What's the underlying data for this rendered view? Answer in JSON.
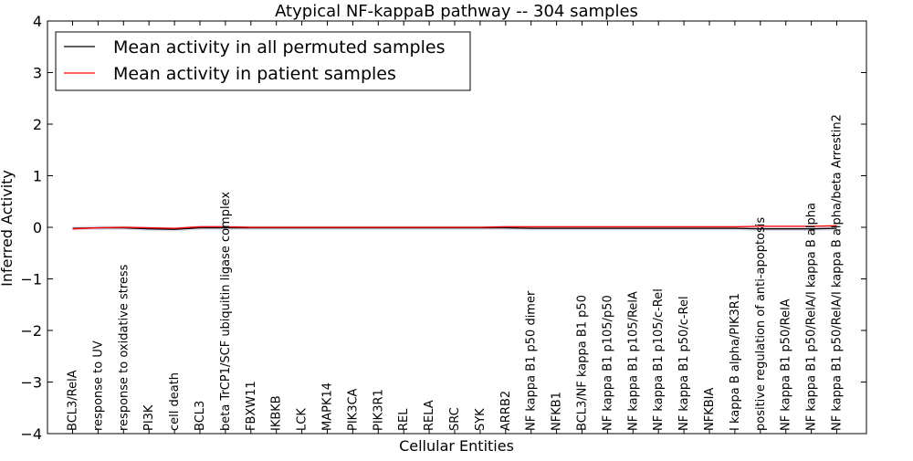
{
  "chart_data": {
    "type": "line",
    "title": "Atypical NF-kappaB pathway -- 304 samples",
    "xlabel": "Cellular Entities",
    "ylabel": "Inferred Activity",
    "ylim": [
      -4,
      4
    ],
    "yticks": [
      -4,
      -3,
      -2,
      -1,
      0,
      1,
      2,
      3,
      4
    ],
    "ytick_labels": [
      "−4",
      "−3",
      "−2",
      "−1",
      "0",
      "1",
      "2",
      "3",
      "4"
    ],
    "grid": false,
    "legend_position": "top-left",
    "categories": [
      "BCL3/RelA",
      "response to UV",
      "response to oxidative stress",
      "PI3K",
      "cell death",
      "BCL3",
      "beta TrCP1/SCF ubiquitin ligase complex",
      "FBXW11",
      "IKBKB",
      "LCK",
      "MAPK14",
      "PIK3CA",
      "PIK3R1",
      "REL",
      "RELA",
      "SRC",
      "SYK",
      "ARRB2",
      "NF kappa B1 p50 dimer",
      "NFKB1",
      "BCL3/NF kappa B1 p50",
      "NF kappa B1 p105/p50",
      "NF kappa B1 p105/RelA",
      "NF kappa B1 p105/c-Rel",
      "NF kappa B1 p50/c-Rel",
      "NFKBIA",
      "I kappa B alpha/PIK3R1",
      "positive regulation of anti-apoptosis",
      "NF kappa B1 p50/RelA",
      "NF kappa B1 p50/RelA/I kappa B alpha",
      "NF kappa B1 p50/RelA/I kappa B alpha/beta Arrestin2"
    ],
    "series": [
      {
        "name": "Mean activity in all permuted samples",
        "color": "#000000",
        "values": [
          -0.02,
          -0.01,
          -0.01,
          -0.03,
          -0.04,
          -0.01,
          -0.01,
          -0.01,
          -0.01,
          -0.01,
          -0.01,
          -0.01,
          -0.01,
          -0.01,
          -0.01,
          -0.01,
          -0.01,
          -0.01,
          -0.02,
          -0.02,
          -0.02,
          -0.02,
          -0.02,
          -0.02,
          -0.02,
          -0.02,
          -0.02,
          -0.03,
          -0.03,
          -0.03,
          -0.02
        ]
      },
      {
        "name": "Mean activity in patient samples",
        "color": "#ff0000",
        "values": [
          -0.03,
          -0.01,
          0.0,
          -0.01,
          -0.02,
          0.01,
          0.01,
          0.0,
          0.0,
          0.0,
          0.0,
          0.0,
          0.0,
          0.0,
          0.0,
          0.0,
          0.0,
          0.01,
          0.01,
          0.01,
          0.01,
          0.01,
          0.01,
          0.01,
          0.01,
          0.01,
          0.01,
          0.02,
          0.02,
          0.02,
          0.03
        ]
      }
    ],
    "band": {
      "color": "#b8b8d8",
      "half_width": 0.04
    }
  }
}
